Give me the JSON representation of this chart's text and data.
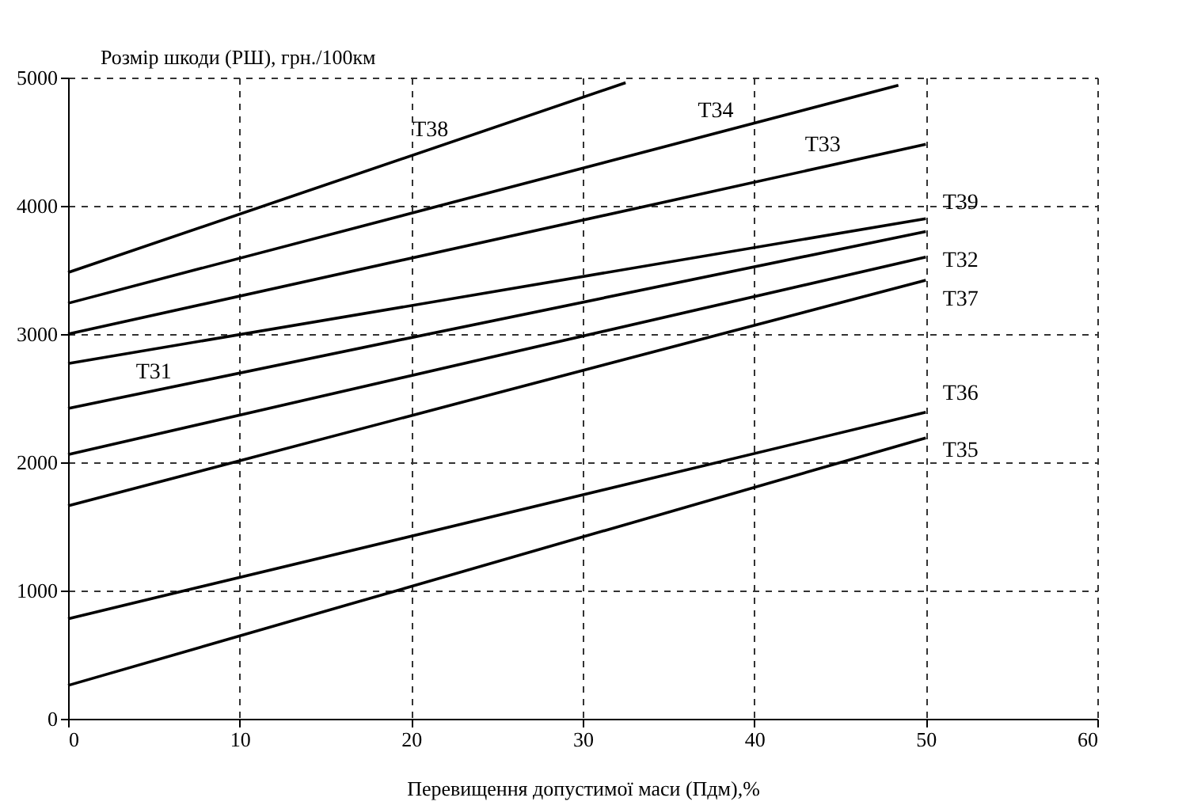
{
  "chart_data": {
    "type": "line",
    "ylabel": "Розмір шкоди (РШ), грн./100км",
    "xlabel": "Перевищення допустимої маси (Пдм),%",
    "xlim": [
      0,
      60
    ],
    "xticks": [
      0,
      10,
      20,
      30,
      40,
      50,
      60
    ],
    "ylim": [
      0,
      5000
    ],
    "yticks": [
      0,
      1000,
      2000,
      3000,
      4000,
      5000
    ],
    "grid": true,
    "legend": false,
    "marker": "none",
    "line_style": "solid",
    "series": [
      {
        "name": "Т38",
        "color": "#000000",
        "x": [
          0,
          32.5
        ],
        "values": [
          3480,
          4960
        ]
      },
      {
        "name": "Т34",
        "color": "#000000",
        "x": [
          0,
          48.4
        ],
        "values": [
          3240,
          4940
        ]
      },
      {
        "name": "Т33",
        "color": "#000000",
        "x": [
          0,
          50
        ],
        "values": [
          3000,
          4480
        ]
      },
      {
        "name": "Т39",
        "color": "#000000",
        "x": [
          0,
          50
        ],
        "values": [
          2770,
          3900
        ]
      },
      {
        "name": "Т31",
        "color": "#000000",
        "x": [
          0,
          50
        ],
        "values": [
          2420,
          3800
        ]
      },
      {
        "name": "Т32",
        "color": "#000000",
        "x": [
          0,
          50
        ],
        "values": [
          2060,
          3600
        ]
      },
      {
        "name": "Т37",
        "color": "#000000",
        "x": [
          0,
          50
        ],
        "values": [
          1660,
          3420
        ]
      },
      {
        "name": "Т36",
        "color": "#000000",
        "x": [
          0,
          50
        ],
        "values": [
          780,
          2390
        ]
      },
      {
        "name": "Т35",
        "color": "#000000",
        "x": [
          0,
          50
        ],
        "values": [
          260,
          2190
        ]
      }
    ]
  }
}
